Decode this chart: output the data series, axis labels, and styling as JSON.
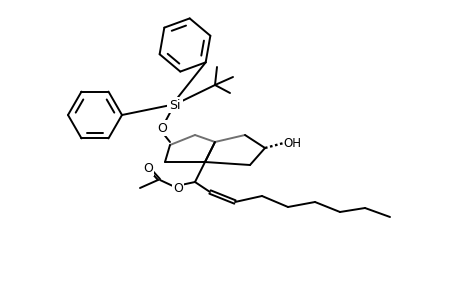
{
  "bg_color": "#ffffff",
  "line_color": "#000000",
  "gray_color": "#707070",
  "line_width": 1.4,
  "fig_width": 4.6,
  "fig_height": 3.0,
  "dpi": 100,
  "xlim": [
    0,
    46
  ],
  "ylim": [
    0,
    30
  ]
}
